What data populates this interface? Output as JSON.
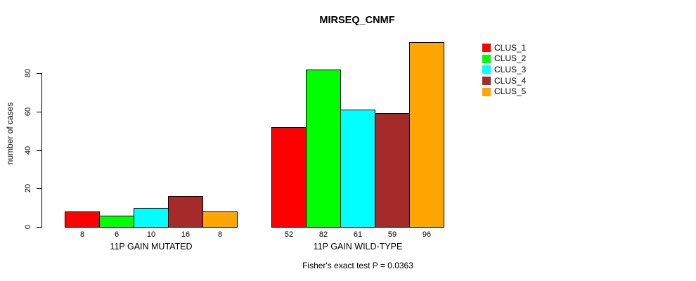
{
  "chart_data": {
    "type": "bar",
    "title": "MIRSEQ_CNMF",
    "subtitle": "Fisher's exact test P = 0.0363",
    "ylabel": "number of cases",
    "xlabel": "",
    "categories": [
      "11P GAIN MUTATED",
      "11P GAIN WILD-TYPE"
    ],
    "series": [
      {
        "name": "CLUS_1",
        "color": "#FF0000",
        "values": [
          8,
          52
        ]
      },
      {
        "name": "CLUS_2",
        "color": "#00FF00",
        "values": [
          6,
          82
        ]
      },
      {
        "name": "CLUS_3",
        "color": "#00FFFF",
        "values": [
          10,
          61
        ]
      },
      {
        "name": "CLUS_4",
        "color": "#A52A2A",
        "values": [
          16,
          59
        ]
      },
      {
        "name": "CLUS_5",
        "color": "#FFA500",
        "values": [
          8,
          96
        ]
      }
    ],
    "yticks": [
      0,
      20,
      40,
      60,
      80
    ],
    "ylim": [
      0,
      97
    ],
    "grid": false,
    "legend_position": "top-right",
    "legend_entries": [
      "CLUS_1",
      "CLUS_2",
      "CLUS_3",
      "CLUS_4",
      "CLUS_5"
    ],
    "bar_value_labels_shown": true,
    "axis_color": "#000000",
    "background_color": "#FFFFFF",
    "text_color": "#000000"
  }
}
